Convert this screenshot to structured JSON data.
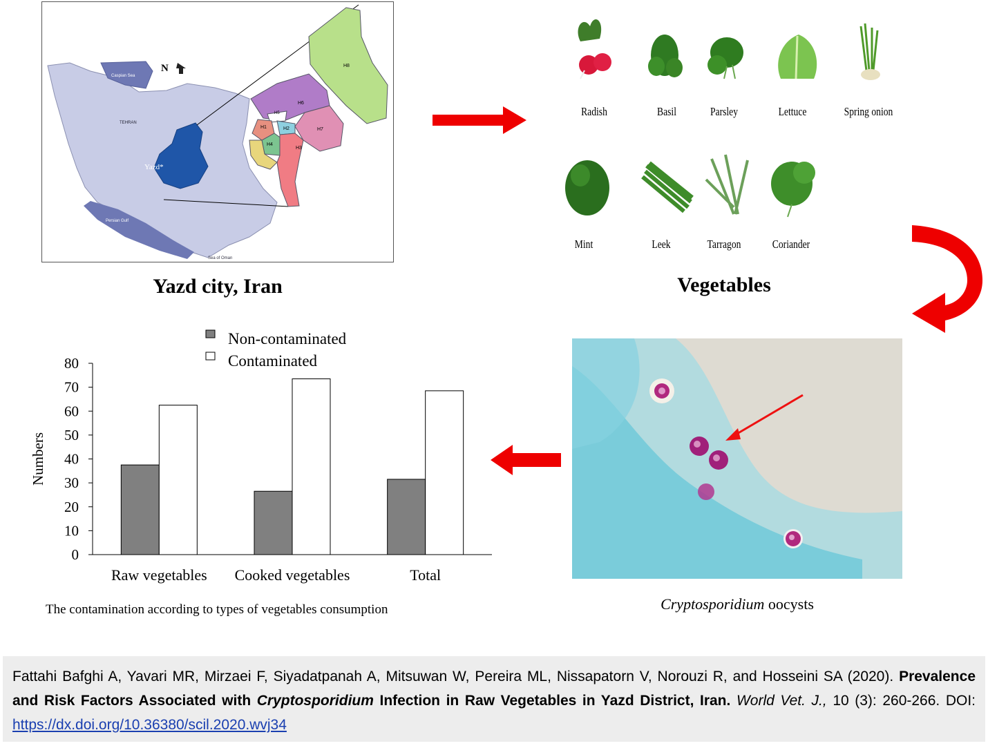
{
  "map": {
    "title": "Yazd city, Iran",
    "north_label": "N",
    "province_label": "Yazd*",
    "district_labels": [
      "H1",
      "H2",
      "H3",
      "H4",
      "H5",
      "H6",
      "H7",
      "H8"
    ],
    "place_labels": [
      "Caspian Sea",
      "TEHRAN",
      "Persian Gulf",
      "Sea of Oman"
    ]
  },
  "vegetables": {
    "title": "Vegetables",
    "items": [
      "Radish",
      "Basil",
      "Parsley",
      "Lettuce",
      "Spring onion",
      "Mint",
      "Leek",
      "Tarragon",
      "Coriander"
    ]
  },
  "microscopy": {
    "caption_italic": "Cryptosporidium",
    "caption_rest": " oocysts"
  },
  "chart_data": {
    "type": "bar",
    "categories": [
      "Raw vegetables",
      "Cooked vegetables",
      "Total"
    ],
    "series": [
      {
        "name": "Non-contaminated",
        "values": [
          37.5,
          26.5,
          31.5
        ],
        "color": "#808080"
      },
      {
        "name": "Contaminated",
        "values": [
          62.5,
          73.5,
          68.5
        ],
        "color": "#ffffff"
      }
    ],
    "ylabel": "Numbers",
    "xlabel": "",
    "ylim": [
      0,
      80
    ],
    "yticks": [
      0,
      10,
      20,
      30,
      40,
      50,
      60,
      70,
      80
    ],
    "legend_position": "top",
    "grid": false,
    "caption": "The contamination according to types of vegetables consumption"
  },
  "citation": {
    "authors": "Fattahi Bafghi A, Yavari MR, Mirzaei F, Siyadatpanah A, Mitsuwan W, Pereira ML, Nissapatorn V, Norouzi R, and Hosseini SA (2020).",
    "title_part1": "Prevalence and Risk Factors Associated with",
    "title_italic": "Cryptosporidium",
    "title_part2": "Infection in Raw Vegetables in Yazd District, Iran.",
    "journal": "World Vet. J.,",
    "volume_pages": "10 (3): 260-266. DOI:",
    "doi_link": "https://dx.doi.org/10.36380/scil.2020.wvj34"
  },
  "colors": {
    "arrow_red": "#ee0000",
    "province_blue": "#1f56a8",
    "stain_blue": "#5fc7d6",
    "oocyst_pink": "#a0207a"
  }
}
